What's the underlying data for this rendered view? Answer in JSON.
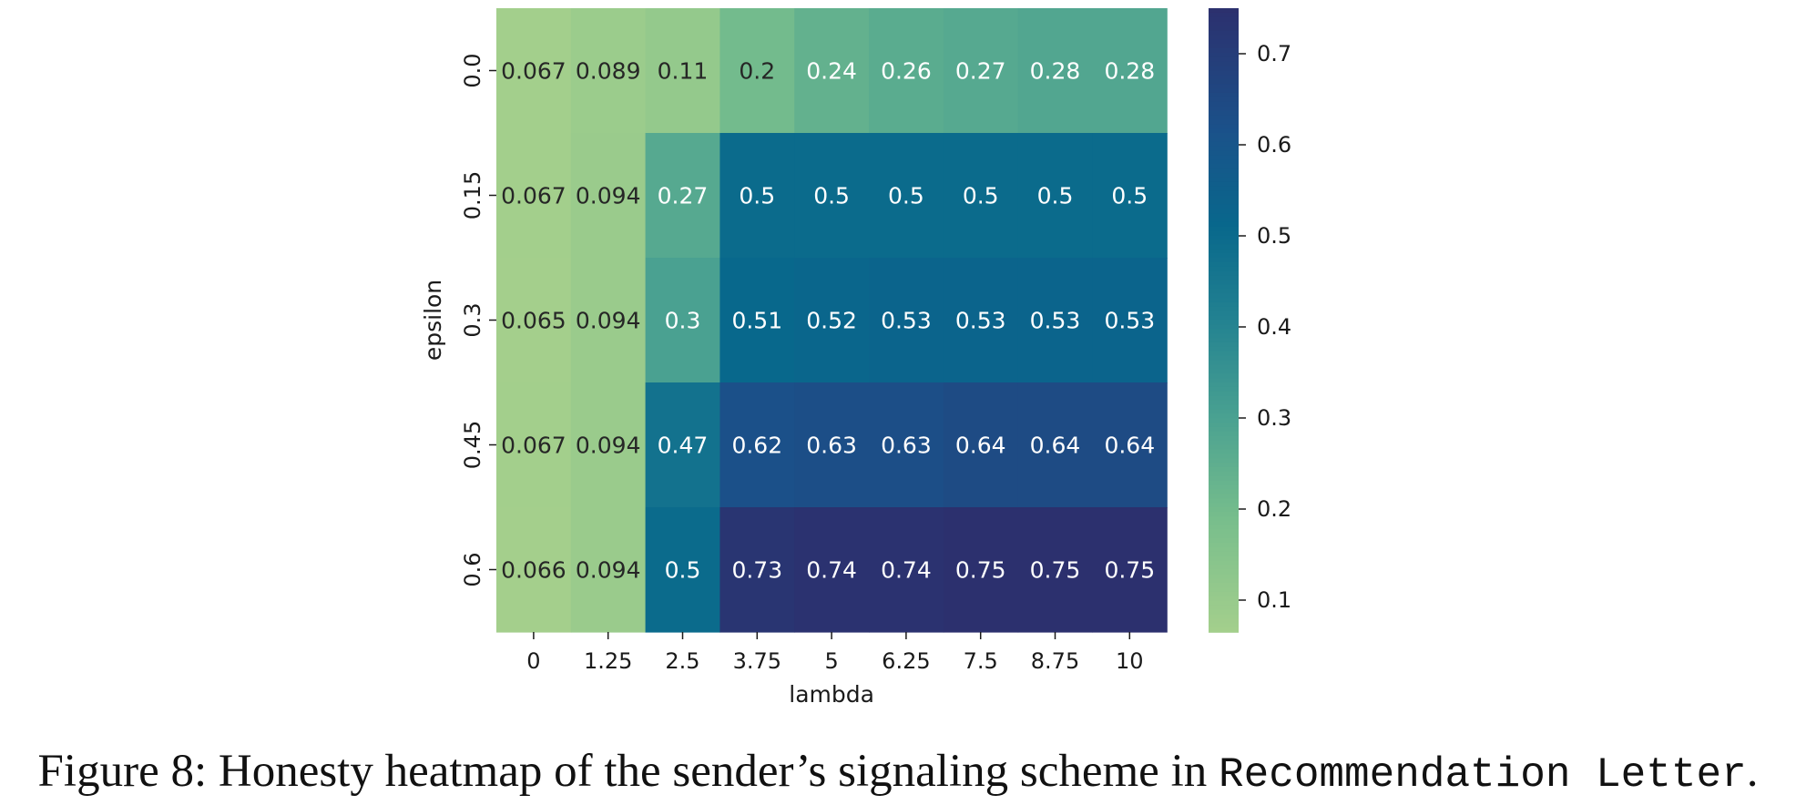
{
  "chart_data": {
    "type": "heatmap",
    "xlabel": "lambda",
    "ylabel": "epsilon",
    "x_categories": [
      "0",
      "1.25",
      "2.5",
      "3.75",
      "5",
      "6.25",
      "7.5",
      "8.75",
      "10"
    ],
    "y_categories": [
      "0.0",
      "0.15",
      "0.3",
      "0.45",
      "0.6"
    ],
    "values": [
      [
        0.067,
        0.089,
        0.11,
        0.2,
        0.24,
        0.26,
        0.27,
        0.28,
        0.28
      ],
      [
        0.067,
        0.094,
        0.27,
        0.5,
        0.5,
        0.5,
        0.5,
        0.5,
        0.5
      ],
      [
        0.065,
        0.094,
        0.3,
        0.51,
        0.52,
        0.53,
        0.53,
        0.53,
        0.53
      ],
      [
        0.067,
        0.094,
        0.47,
        0.62,
        0.63,
        0.63,
        0.64,
        0.64,
        0.64
      ],
      [
        0.066,
        0.094,
        0.5,
        0.73,
        0.74,
        0.74,
        0.75,
        0.75,
        0.75
      ]
    ],
    "colormap": "crest",
    "vmin": 0.065,
    "vmax": 0.75,
    "colorbar_ticks": [
      "0.1",
      "0.2",
      "0.3",
      "0.4",
      "0.5",
      "0.6",
      "0.7"
    ]
  },
  "caption": {
    "prefix": "Figure 8: Honesty heatmap of the sender’s signaling scheme in ",
    "code": "Recommendation Letter",
    "suffix": "."
  }
}
